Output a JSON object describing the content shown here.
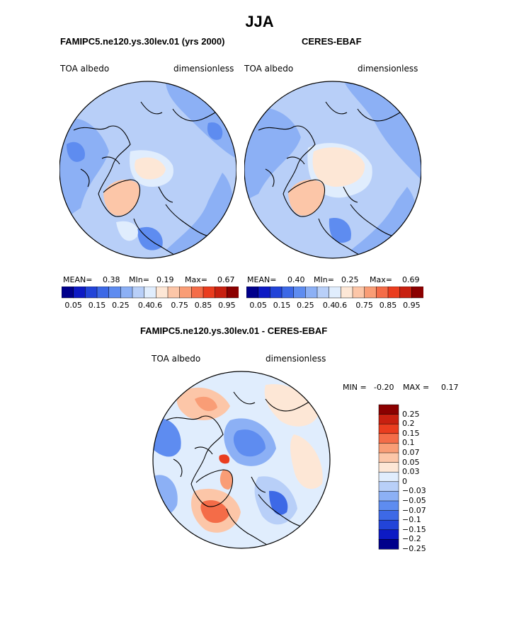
{
  "figure": {
    "title": "JJA"
  },
  "colors": {
    "sequential": [
      "#00008b",
      "#0d1ac4",
      "#2244d8",
      "#3d69e6",
      "#5e8cf0",
      "#8cb0f5",
      "#b8cff8",
      "#e0edfd",
      "#fde7d6",
      "#fcc6a8",
      "#f99d76",
      "#f46c48",
      "#ea3d1f",
      "#c82010",
      "#8b0000"
    ],
    "diverging": [
      "#00008b",
      "#0d1ac4",
      "#2244d8",
      "#3d69e6",
      "#5e8cf0",
      "#8cb0f5",
      "#b8cff8",
      "#e0edfd",
      "#fde7d6",
      "#fcc6a8",
      "#f99d76",
      "#f46c48",
      "#ea3d1f",
      "#c82010",
      "#8b0000"
    ],
    "coast": "#000000"
  },
  "panels": {
    "model": {
      "title": "FAMIPC5.ne120.ys.30lev.01 (yrs 2000)",
      "left_label": "TOA albedo",
      "right_label": "dimensionless",
      "mean_label": "MEAN=",
      "mean": "0.38",
      "min_label": "MIn=",
      "min": "0.19",
      "max_label": "Max=",
      "max": "0.67",
      "colorbar_ticks": [
        "0.05",
        "0.15",
        "0.25",
        "0.4",
        "0.6",
        "0.75",
        "0.85",
        "0.95"
      ]
    },
    "obs": {
      "title": "CERES-EBAF",
      "left_label": "TOA albedo",
      "right_label": "dimensionless",
      "mean_label": "MEAN=",
      "mean": "0.40",
      "min_label": "MIn=",
      "min": "0.25",
      "max_label": "Max=",
      "max": "0.69",
      "colorbar_ticks": [
        "0.05",
        "0.15",
        "0.25",
        "0.4",
        "0.6",
        "0.75",
        "0.85",
        "0.95"
      ]
    },
    "diff": {
      "title": "FAMIPC5.ne120.ys.30lev.01 - CERES-EBAF",
      "left_label": "TOA albedo",
      "right_label": "dimensionless",
      "min_label": "MIN =",
      "min": "-0.20",
      "max_label": "MAX =",
      "max": "0.17",
      "colorbar_levels": [
        "0.25",
        "0.2",
        "0.15",
        "0.1",
        "0.07",
        "0.05",
        "0.03",
        "0",
        "−0.03",
        "−0.05",
        "−0.07",
        "−0.1",
        "−0.15",
        "−0.2",
        "−0.25"
      ]
    }
  },
  "chart_data": [
    {
      "type": "heatmap",
      "title": "FAMIPC5.ne120.ys.30lev.01 (yrs 2000)",
      "variable": "TOA albedo",
      "units": "dimensionless",
      "season": "JJA",
      "projection": "north polar stereographic",
      "stats": {
        "mean": 0.38,
        "min": 0.19,
        "max": 0.67
      },
      "colorbar_ticks": [
        0.05,
        0.15,
        0.25,
        0.4,
        0.6,
        0.75,
        0.85,
        0.95
      ]
    },
    {
      "type": "heatmap",
      "title": "CERES-EBAF",
      "variable": "TOA albedo",
      "units": "dimensionless",
      "season": "JJA",
      "projection": "north polar stereographic",
      "stats": {
        "mean": 0.4,
        "min": 0.25,
        "max": 0.69
      },
      "colorbar_ticks": [
        0.05,
        0.15,
        0.25,
        0.4,
        0.6,
        0.75,
        0.85,
        0.95
      ]
    },
    {
      "type": "heatmap",
      "title": "FAMIPC5.ne120.ys.30lev.01 - CERES-EBAF",
      "variable": "TOA albedo",
      "units": "dimensionless",
      "season": "JJA",
      "projection": "north polar stereographic",
      "stats": {
        "min": -0.2,
        "max": 0.17
      },
      "colorbar_levels": [
        0.25,
        0.2,
        0.15,
        0.1,
        0.07,
        0.05,
        0.03,
        0,
        -0.03,
        -0.05,
        -0.07,
        -0.1,
        -0.15,
        -0.2,
        -0.25
      ]
    }
  ]
}
